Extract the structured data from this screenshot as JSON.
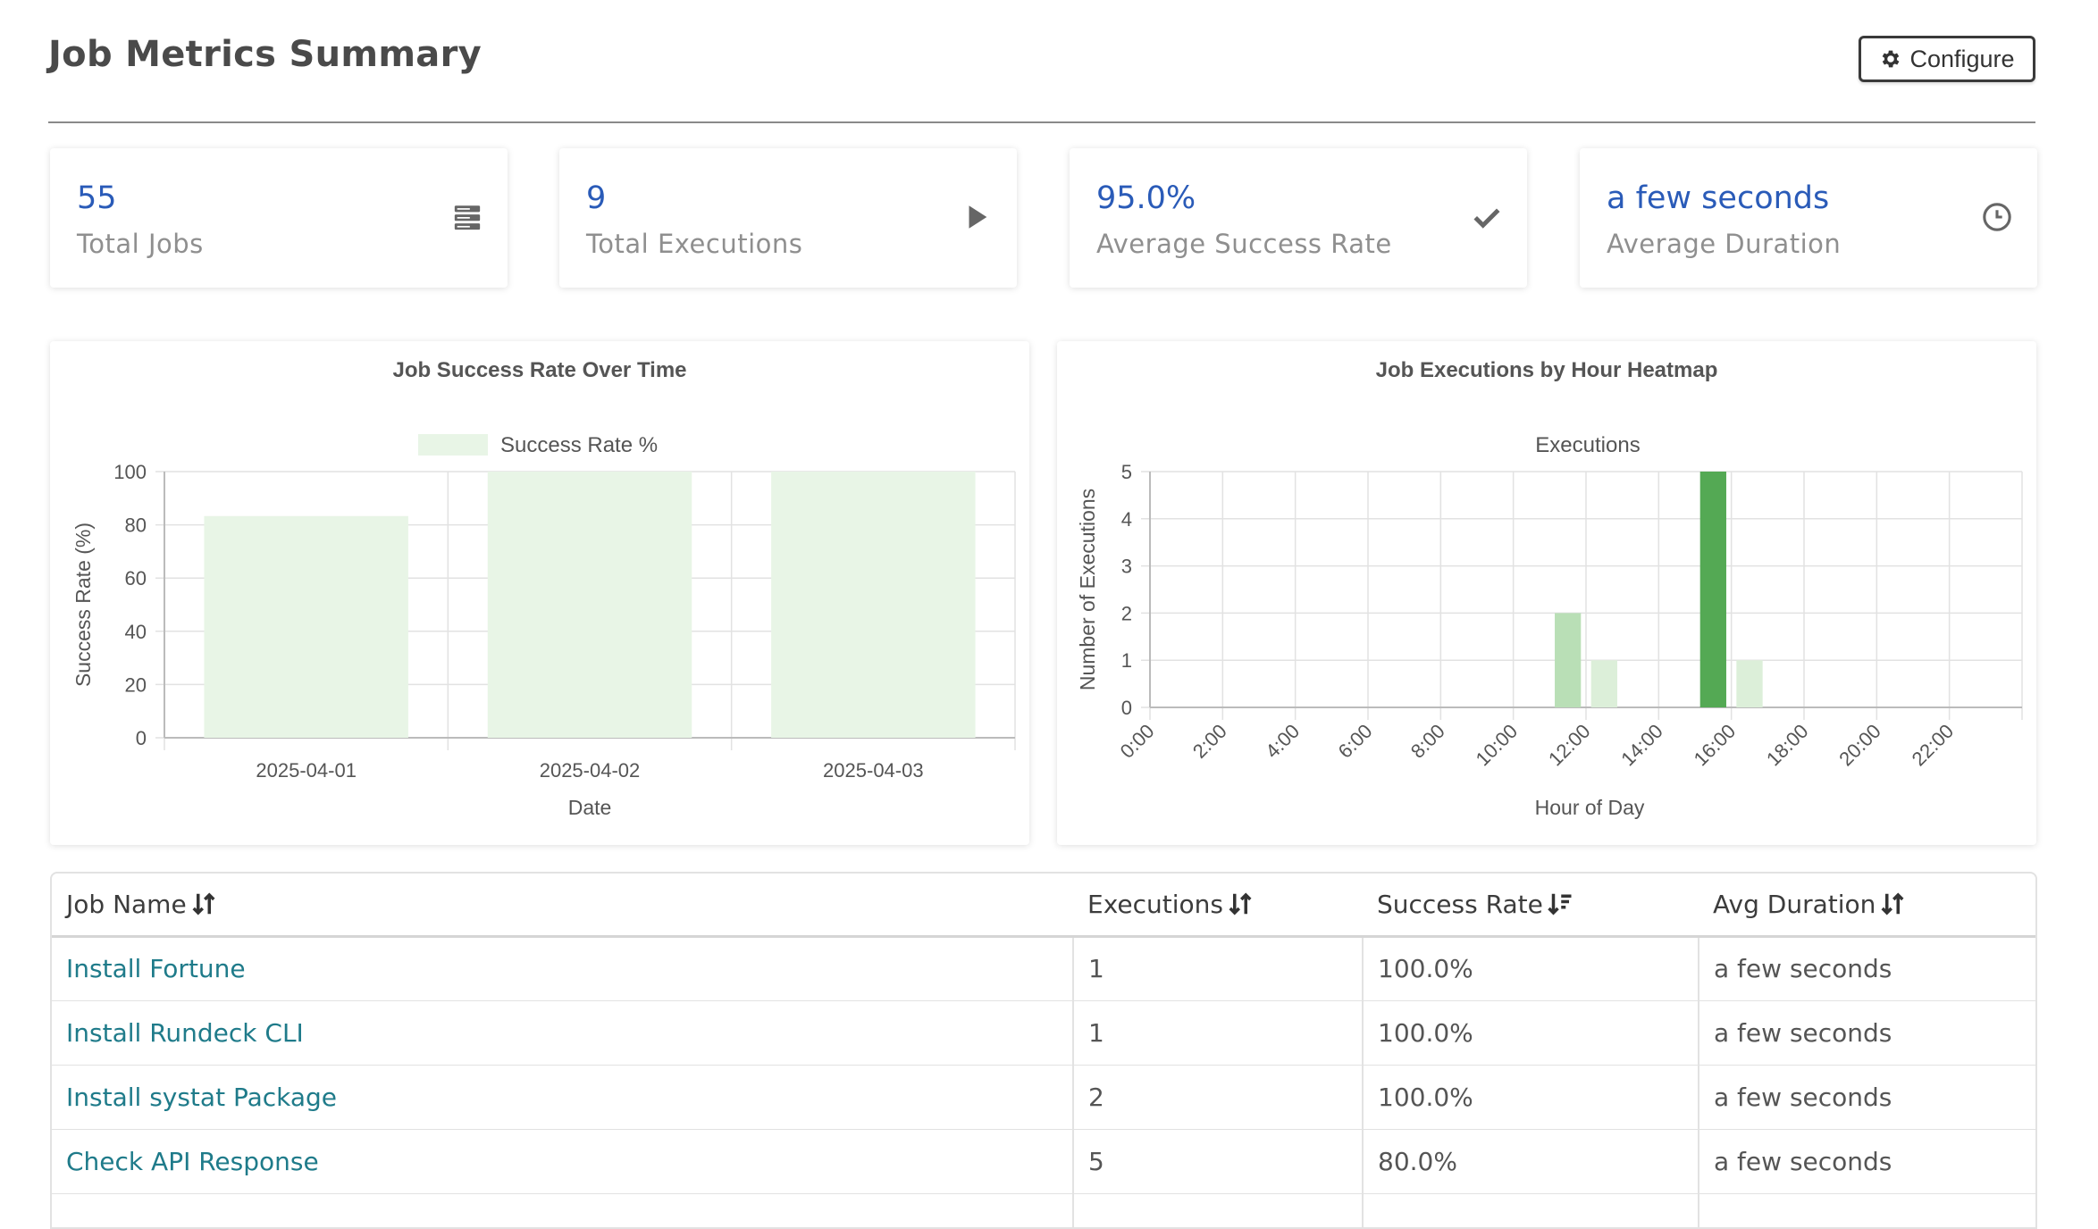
{
  "header": {
    "title": "Job Metrics Summary",
    "configure_label": "Configure",
    "configure_icon": "gear-icon"
  },
  "cards": [
    {
      "value": "55",
      "label": "Total Jobs",
      "icon": "server-icon"
    },
    {
      "value": "9",
      "label": "Total Executions",
      "icon": "play-icon"
    },
    {
      "value": "95.0%",
      "label": "Average Success Rate",
      "icon": "check-icon"
    },
    {
      "value": "a few seconds",
      "label": "Average Duration",
      "icon": "clock-icon"
    }
  ],
  "colors": {
    "accent": "#2a5bb8",
    "link": "#1f7b8a",
    "bar_light": "#e8f5e6",
    "bar_mid": "#b9dfb6",
    "bar_strong": "#54a954"
  },
  "chart_data": [
    {
      "type": "bar",
      "title": "Job Success Rate Over Time",
      "categories": [
        "2025-04-01",
        "2025-04-02",
        "2025-04-03"
      ],
      "series": [
        {
          "name": "Success Rate %",
          "values": [
            83.3,
            100,
            100
          ]
        }
      ],
      "xlabel": "Date",
      "ylabel": "Success Rate (%)",
      "ylim": [
        0,
        100
      ],
      "yticks": [
        0,
        20,
        40,
        60,
        80,
        100
      ],
      "legend": "top",
      "grid": true
    },
    {
      "type": "heatmap",
      "title": "Job Executions by Hour Heatmap",
      "categories": [
        "0:00",
        "1:00",
        "2:00",
        "3:00",
        "4:00",
        "5:00",
        "6:00",
        "7:00",
        "8:00",
        "9:00",
        "10:00",
        "11:00",
        "12:00",
        "13:00",
        "14:00",
        "15:00",
        "16:00",
        "17:00",
        "18:00",
        "19:00",
        "20:00",
        "21:00",
        "22:00",
        "23:00"
      ],
      "tick_labels": [
        "0:00",
        "2:00",
        "4:00",
        "6:00",
        "8:00",
        "10:00",
        "12:00",
        "14:00",
        "16:00",
        "18:00",
        "20:00",
        "22:00"
      ],
      "series": [
        {
          "name": "Executions",
          "values": [
            0,
            0,
            0,
            0,
            0,
            0,
            0,
            0,
            0,
            0,
            0,
            2,
            1,
            0,
            0,
            5,
            1,
            0,
            0,
            0,
            0,
            0,
            0,
            0
          ]
        }
      ],
      "xlabel": "Hour of Day",
      "ylabel": "Number of Executions",
      "ylim": [
        0,
        5
      ],
      "yticks": [
        0,
        1,
        2,
        3,
        4,
        5
      ],
      "legend": "top",
      "grid": true
    }
  ],
  "table": {
    "columns": [
      "Job Name",
      "Executions",
      "Success Rate",
      "Avg Duration"
    ],
    "rows": [
      [
        "Install Fortune",
        "1",
        "100.0%",
        "a few seconds"
      ],
      [
        "Install Rundeck CLI",
        "1",
        "100.0%",
        "a few seconds"
      ],
      [
        "Install systat Package",
        "2",
        "100.0%",
        "a few seconds"
      ],
      [
        "Check API Response",
        "5",
        "80.0%",
        "a few seconds"
      ]
    ]
  }
}
